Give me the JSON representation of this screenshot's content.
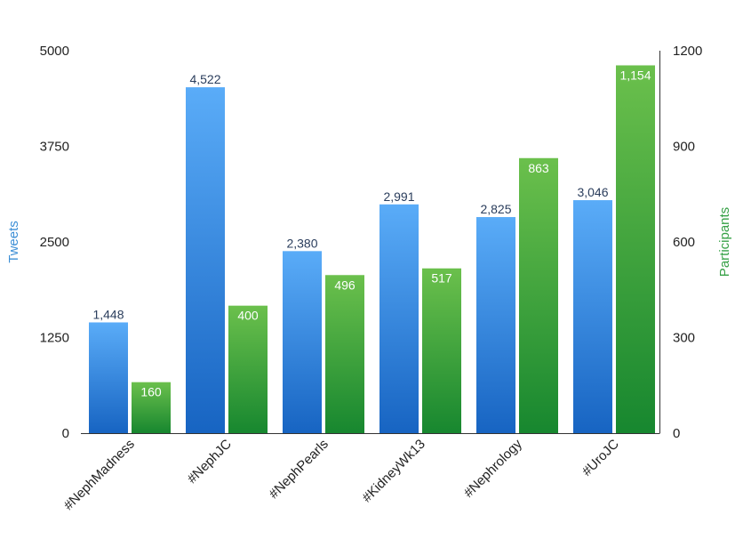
{
  "chart_data": {
    "type": "bar",
    "categories": [
      "#NephMadness",
      "#NephJC",
      "#NephPearls",
      "#KidneyWk13",
      "#Nephrology",
      "#UroJC"
    ],
    "series": [
      {
        "name": "Tweets",
        "axis": "left",
        "values": [
          1448,
          4522,
          2380,
          2991,
          2825,
          3046
        ],
        "labels": [
          "1,448",
          "4,522",
          "2,380",
          "2,991",
          "2,825",
          "3,046"
        ]
      },
      {
        "name": "Participants",
        "axis": "right",
        "values": [
          160,
          400,
          496,
          517,
          863,
          1154
        ],
        "labels": [
          "160",
          "400",
          "496",
          "517",
          "863",
          "1,154"
        ]
      }
    ],
    "y_left": {
      "label": "Tweets",
      "range": [
        0,
        5000
      ],
      "ticks": [
        "0",
        "1250",
        "2500",
        "3750",
        "5000"
      ],
      "tick_values": [
        0,
        1250,
        2500,
        3750,
        5000
      ]
    },
    "y_right": {
      "label": "Participants",
      "range": [
        0,
        1200
      ],
      "ticks": [
        "0",
        "300",
        "600",
        "900",
        "1200"
      ],
      "tick_values": [
        0,
        300,
        600,
        900,
        1200
      ]
    },
    "grid": false,
    "legend": "none",
    "colors": {
      "tweets_top": "#5aacf8",
      "tweets_bottom": "#1764c2",
      "participants_top": "#6bc04c",
      "participants_bottom": "#17872f",
      "left_axis_title": "#3d8fd6",
      "right_axis_title": "#36a146"
    }
  }
}
